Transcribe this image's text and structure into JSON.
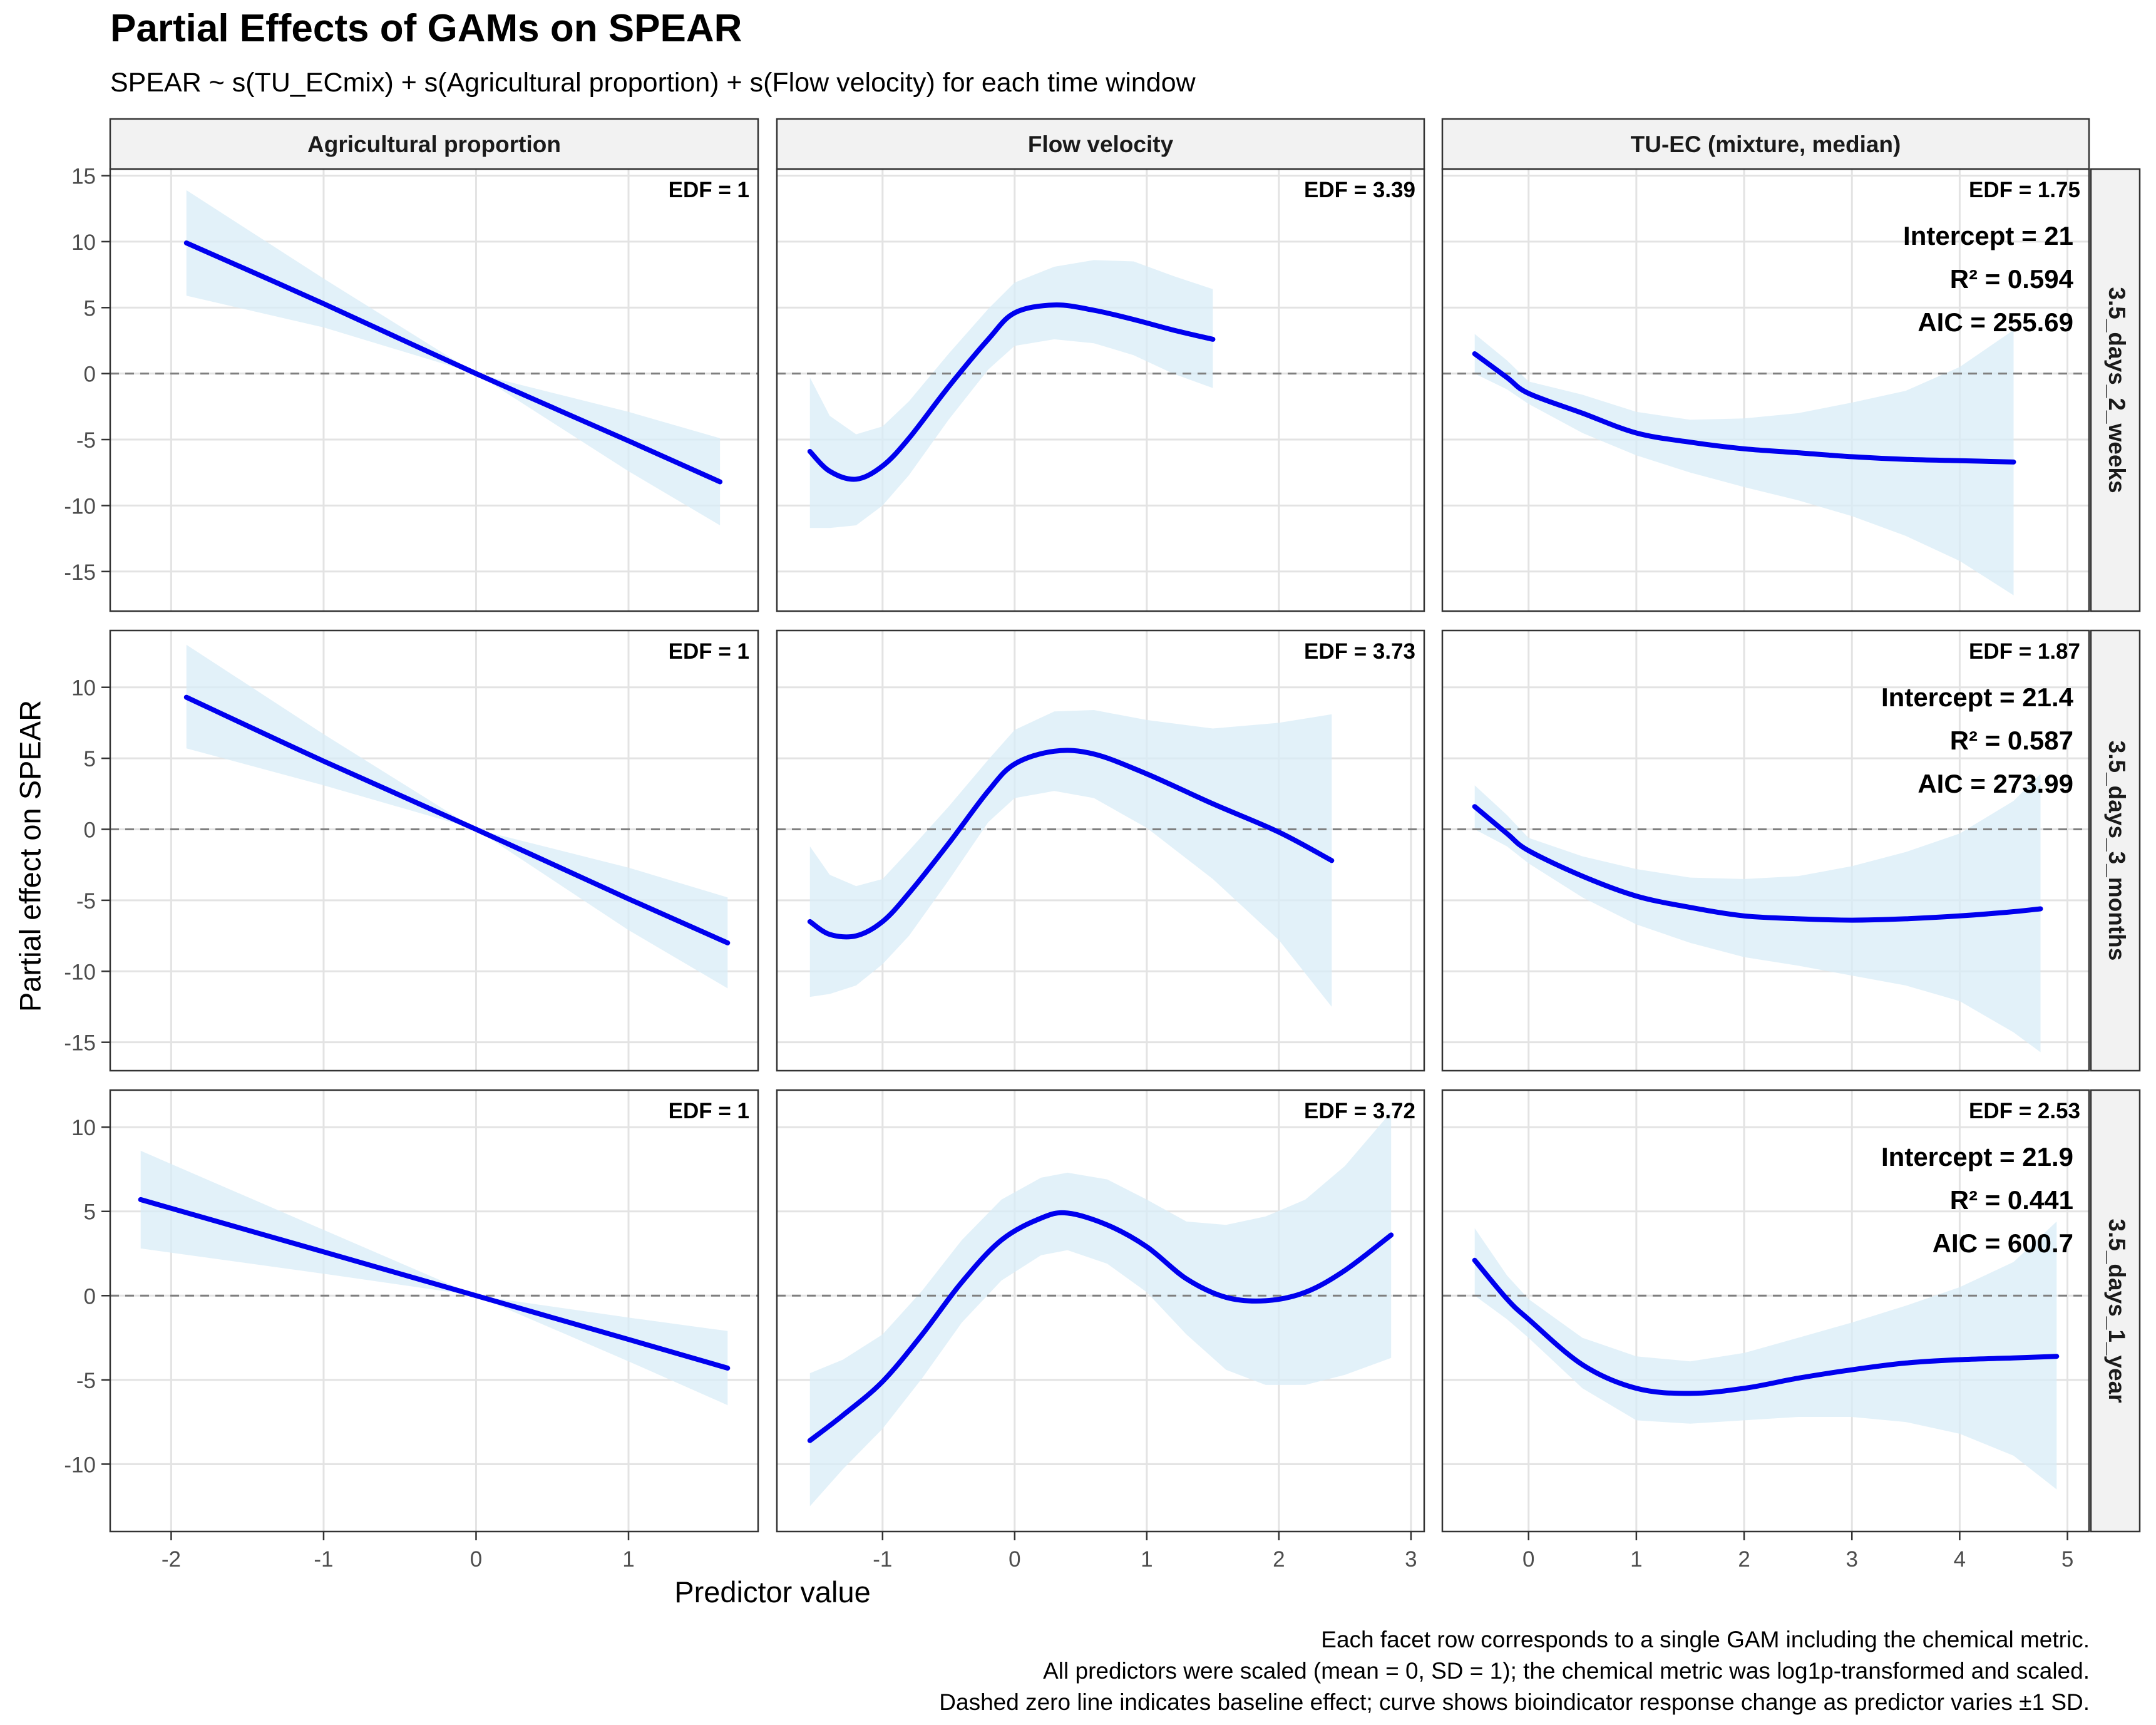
{
  "title": "Partial Effects of GAMs on SPEAR",
  "subtitle": "SPEAR ~ s(TU_ECmix) + s(Agricultural proportion) + s(Flow velocity) for each time window",
  "caption": [
    "Each facet row corresponds to a single GAM including the chemical metric.",
    "All predictors were scaled (mean = 0, SD = 1); the chemical metric was log1p-transformed and scaled.",
    "Dashed zero line indicates baseline effect; curve shows bioindicator response change as predictor varies ±1 SD."
  ],
  "colors": {
    "curve": "#0000ee",
    "ribbon": "#d8ecf7",
    "zero_line": "#7f7f7f",
    "strip_fill": "#f2f2f2",
    "grid": "#e3e3e3"
  },
  "chart_data": {
    "type": "line",
    "xlabel": "Predictor value",
    "ylabel": "Partial effect on SPEAR",
    "grid": true,
    "columns": [
      {
        "name": "Agricultural proportion",
        "xlim": [
          -2.4,
          1.85
        ],
        "xticks": [
          -2,
          -1,
          0,
          1
        ]
      },
      {
        "name": "Flow velocity",
        "xlim": [
          -1.8,
          3.1
        ],
        "xticks": [
          -1,
          0,
          1,
          2,
          3
        ]
      },
      {
        "name": "TU-EC (mixture, median)",
        "xlim": [
          -0.8,
          5.2
        ],
        "xticks": [
          0,
          1,
          2,
          3,
          4,
          5
        ]
      }
    ],
    "rows": [
      {
        "name": "3.5_days_2_weeks",
        "ylim": [
          -18,
          15.5
        ],
        "yticks": [
          -15,
          -10,
          -5,
          0,
          5,
          10,
          15
        ],
        "intercept": "Intercept = 21",
        "r2": "R² = 0.594",
        "aic": "AIC = 255.69",
        "panels": [
          {
            "edf": "EDF = 1",
            "x": [
              -1.9,
              -1.0,
              0.0,
              1.0,
              1.6
            ],
            "fit": [
              9.9,
              5.3,
              0.0,
              -5.1,
              -8.2
            ],
            "lower": [
              5.9,
              3.5,
              0.0,
              -7.4,
              -11.5
            ],
            "upper": [
              13.9,
              7.2,
              0.0,
              -2.9,
              -4.9
            ]
          },
          {
            "edf": "EDF = 3.39",
            "x": [
              -1.55,
              -1.4,
              -1.2,
              -1.0,
              -0.8,
              -0.5,
              -0.2,
              0.0,
              0.3,
              0.6,
              0.9,
              1.2,
              1.5
            ],
            "fit": [
              -5.9,
              -7.4,
              -8.0,
              -7.0,
              -4.9,
              -1.0,
              2.6,
              4.6,
              5.2,
              4.8,
              4.1,
              3.3,
              2.6
            ],
            "lower": [
              -11.7,
              -11.7,
              -11.5,
              -10.0,
              -7.7,
              -3.5,
              0.3,
              2.1,
              2.6,
              2.3,
              1.4,
              0.0,
              -1.1
            ],
            "upper": [
              -0.3,
              -3.2,
              -4.6,
              -4.0,
              -2.1,
              1.5,
              4.9,
              6.9,
              8.1,
              8.6,
              8.5,
              7.4,
              6.4
            ]
          },
          {
            "edf": "EDF = 1.75",
            "x": [
              -0.5,
              -0.2,
              0.0,
              0.5,
              1.0,
              1.5,
              2.0,
              2.5,
              3.0,
              3.5,
              4.0,
              4.5
            ],
            "fit": [
              1.5,
              -0.3,
              -1.5,
              -3.0,
              -4.5,
              -5.2,
              -5.7,
              -6.0,
              -6.3,
              -6.5,
              -6.6,
              -6.7
            ],
            "lower": [
              0.0,
              -1.2,
              -2.3,
              -4.5,
              -6.2,
              -7.5,
              -8.6,
              -9.6,
              -10.8,
              -12.3,
              -14.2,
              -16.8
            ],
            "upper": [
              3.0,
              1.0,
              -0.6,
              -1.6,
              -2.9,
              -3.5,
              -3.4,
              -3.0,
              -2.2,
              -1.3,
              0.5,
              3.3
            ]
          }
        ]
      },
      {
        "name": "3.5_days_3_months",
        "ylim": [
          -17,
          14
        ],
        "yticks": [
          -15,
          -10,
          -5,
          0,
          5,
          10
        ],
        "intercept": "Intercept = 21.4",
        "r2": "R² = 0.587",
        "aic": "AIC = 273.99",
        "panels": [
          {
            "edf": "EDF = 1",
            "x": [
              -1.9,
              -1.0,
              0.0,
              1.0,
              1.65
            ],
            "fit": [
              9.3,
              4.8,
              0.0,
              -4.9,
              -8.0
            ],
            "lower": [
              5.7,
              3.1,
              0.0,
              -7.1,
              -11.2
            ],
            "upper": [
              13.0,
              6.7,
              0.0,
              -2.7,
              -4.8
            ]
          },
          {
            "edf": "EDF = 3.73",
            "x": [
              -1.55,
              -1.4,
              -1.2,
              -1.0,
              -0.8,
              -0.5,
              -0.2,
              0.0,
              0.3,
              0.6,
              1.0,
              1.5,
              2.0,
              2.4
            ],
            "fit": [
              -6.5,
              -7.4,
              -7.5,
              -6.5,
              -4.5,
              -1.0,
              2.7,
              4.6,
              5.5,
              5.3,
              3.9,
              1.8,
              -0.2,
              -2.2
            ],
            "lower": [
              -11.8,
              -11.6,
              -11.0,
              -9.5,
              -7.5,
              -3.6,
              0.5,
              2.2,
              2.7,
              2.2,
              0.1,
              -3.5,
              -7.8,
              -12.5
            ],
            "upper": [
              -1.2,
              -3.2,
              -4.0,
              -3.5,
              -1.5,
              1.6,
              4.9,
              7.0,
              8.3,
              8.4,
              7.7,
              7.1,
              7.5,
              8.1
            ]
          },
          {
            "edf": "EDF = 1.87",
            "x": [
              -0.5,
              -0.2,
              0.0,
              0.5,
              1.0,
              1.5,
              2.0,
              2.5,
              3.0,
              3.5,
              4.0,
              4.5,
              4.75
            ],
            "fit": [
              1.6,
              -0.3,
              -1.5,
              -3.3,
              -4.7,
              -5.5,
              -6.1,
              -6.3,
              -6.4,
              -6.3,
              -6.1,
              -5.8,
              -5.6
            ],
            "lower": [
              0.0,
              -1.2,
              -2.4,
              -4.8,
              -6.7,
              -8.0,
              -9.0,
              -9.6,
              -10.3,
              -11.0,
              -12.1,
              -14.3,
              -15.7
            ],
            "upper": [
              3.1,
              1.0,
              -0.6,
              -1.9,
              -2.8,
              -3.4,
              -3.5,
              -3.3,
              -2.6,
              -1.6,
              -0.3,
              2.0,
              3.9
            ]
          }
        ]
      },
      {
        "name": "3.5_days_1_year",
        "ylim": [
          -14,
          12.2
        ],
        "yticks": [
          -10,
          -5,
          0,
          5,
          10
        ],
        "intercept": "Intercept = 21.9",
        "r2": "R² = 0.441",
        "aic": "AIC = 600.7",
        "panels": [
          {
            "edf": "EDF = 1",
            "x": [
              -2.2,
              -1.0,
              0.0,
              1.0,
              1.65
            ],
            "fit": [
              5.7,
              2.6,
              0.0,
              -2.6,
              -4.3
            ],
            "lower": [
              2.8,
              1.3,
              0.0,
              -3.9,
              -6.5
            ],
            "upper": [
              8.6,
              3.9,
              0.0,
              -1.3,
              -2.1
            ]
          },
          {
            "edf": "EDF = 3.72",
            "x": [
              -1.55,
              -1.3,
              -1.0,
              -0.7,
              -0.4,
              -0.1,
              0.2,
              0.4,
              0.7,
              1.0,
              1.3,
              1.6,
              1.9,
              2.2,
              2.5,
              2.85
            ],
            "fit": [
              -8.6,
              -7.1,
              -5.1,
              -2.3,
              0.8,
              3.3,
              4.6,
              4.9,
              4.2,
              2.9,
              1.0,
              -0.1,
              -0.3,
              0.2,
              1.5,
              3.6
            ],
            "lower": [
              -12.5,
              -10.3,
              -7.9,
              -4.9,
              -1.6,
              0.9,
              2.4,
              2.7,
              1.9,
              0.2,
              -2.3,
              -4.4,
              -5.3,
              -5.3,
              -4.7,
              -3.7
            ],
            "upper": [
              -4.6,
              -3.8,
              -2.3,
              0.3,
              3.3,
              5.7,
              7.0,
              7.3,
              6.9,
              5.7,
              4.4,
              4.2,
              4.7,
              5.7,
              7.7,
              10.9
            ]
          },
          {
            "edf": "EDF = 2.53",
            "x": [
              -0.5,
              -0.2,
              0.0,
              0.5,
              1.0,
              1.5,
              2.0,
              2.5,
              3.0,
              3.5,
              4.0,
              4.5,
              4.9
            ],
            "fit": [
              2.1,
              -0.2,
              -1.4,
              -4.1,
              -5.5,
              -5.8,
              -5.5,
              -4.9,
              -4.4,
              -4.0,
              -3.8,
              -3.7,
              -3.6
            ],
            "lower": [
              0.0,
              -1.4,
              -2.5,
              -5.5,
              -7.4,
              -7.6,
              -7.4,
              -7.2,
              -7.2,
              -7.5,
              -8.2,
              -9.5,
              -11.5
            ],
            "upper": [
              4.0,
              1.2,
              -0.2,
              -2.5,
              -3.6,
              -3.9,
              -3.4,
              -2.5,
              -1.6,
              -0.6,
              0.5,
              2.0,
              4.4
            ]
          }
        ]
      }
    ]
  }
}
